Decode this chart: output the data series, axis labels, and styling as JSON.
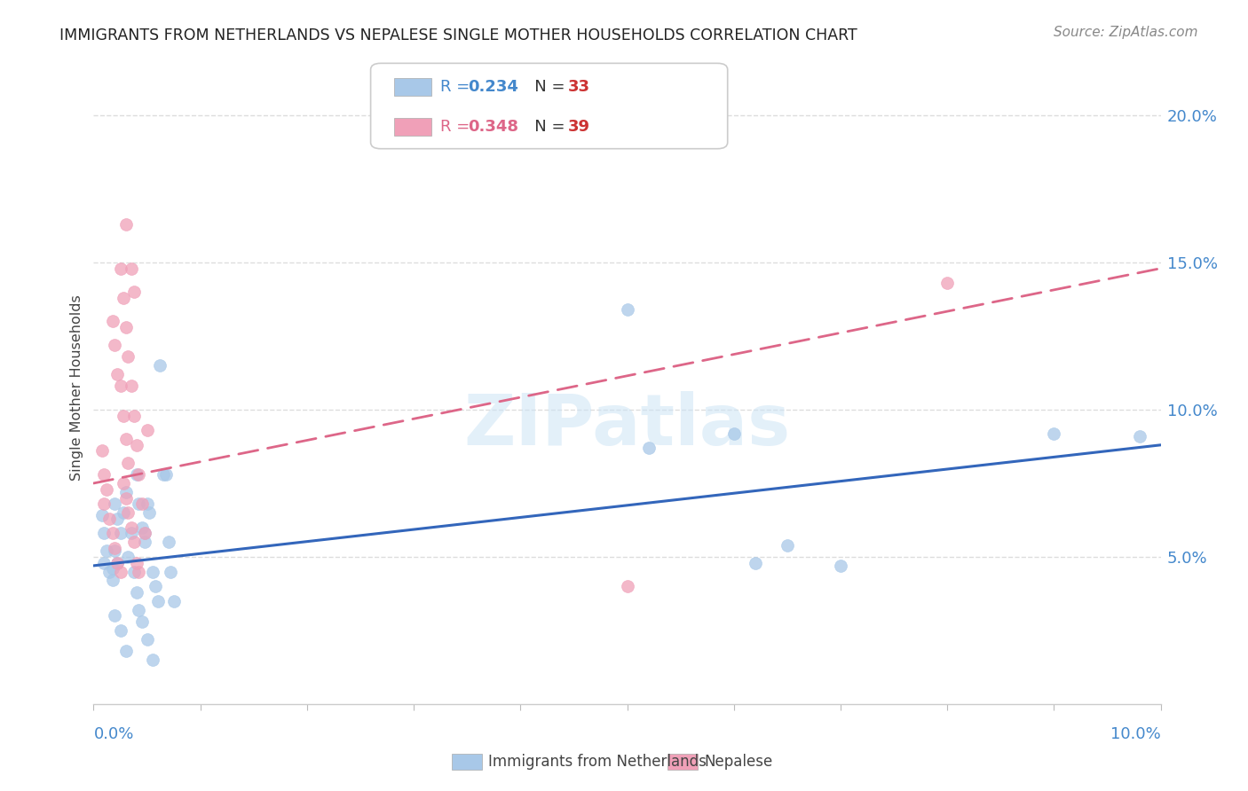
{
  "title": "IMMIGRANTS FROM NETHERLANDS VS NEPALESE SINGLE MOTHER HOUSEHOLDS CORRELATION CHART",
  "source": "Source: ZipAtlas.com",
  "ylabel": "Single Mother Households",
  "right_yticks": [
    "5.0%",
    "10.0%",
    "15.0%",
    "20.0%"
  ],
  "right_ytick_vals": [
    0.05,
    0.1,
    0.15,
    0.2
  ],
  "xmin": 0.0,
  "xmax": 0.1,
  "ymin": 0.0,
  "ymax": 0.215,
  "color_blue": "#a8c8e8",
  "color_pink": "#f0a0b8",
  "trendline_blue": "#3366bb",
  "trendline_pink": "#dd6688",
  "watermark": "ZIPatlas",
  "blue_points": [
    [
      0.0008,
      0.064
    ],
    [
      0.001,
      0.058
    ],
    [
      0.0012,
      0.052
    ],
    [
      0.001,
      0.048
    ],
    [
      0.0015,
      0.045
    ],
    [
      0.0018,
      0.042
    ],
    [
      0.002,
      0.068
    ],
    [
      0.0022,
      0.063
    ],
    [
      0.0025,
      0.058
    ],
    [
      0.002,
      0.052
    ],
    [
      0.0022,
      0.048
    ],
    [
      0.0018,
      0.046
    ],
    [
      0.003,
      0.072
    ],
    [
      0.0028,
      0.065
    ],
    [
      0.0035,
      0.058
    ],
    [
      0.0032,
      0.05
    ],
    [
      0.0038,
      0.045
    ],
    [
      0.004,
      0.078
    ],
    [
      0.0042,
      0.068
    ],
    [
      0.0045,
      0.06
    ],
    [
      0.0048,
      0.055
    ],
    [
      0.005,
      0.068
    ],
    [
      0.0052,
      0.065
    ],
    [
      0.0048,
      0.058
    ],
    [
      0.0055,
      0.045
    ],
    [
      0.0058,
      0.04
    ],
    [
      0.006,
      0.035
    ],
    [
      0.0062,
      0.115
    ],
    [
      0.0065,
      0.078
    ],
    [
      0.0068,
      0.078
    ],
    [
      0.007,
      0.055
    ],
    [
      0.0072,
      0.045
    ],
    [
      0.0075,
      0.035
    ],
    [
      0.05,
      0.134
    ],
    [
      0.052,
      0.087
    ],
    [
      0.06,
      0.092
    ],
    [
      0.062,
      0.048
    ],
    [
      0.065,
      0.054
    ],
    [
      0.07,
      0.047
    ],
    [
      0.09,
      0.092
    ],
    [
      0.098,
      0.091
    ],
    [
      0.002,
      0.03
    ],
    [
      0.0025,
      0.025
    ],
    [
      0.003,
      0.018
    ],
    [
      0.004,
      0.038
    ],
    [
      0.0042,
      0.032
    ],
    [
      0.0045,
      0.028
    ],
    [
      0.005,
      0.022
    ],
    [
      0.0055,
      0.015
    ]
  ],
  "pink_points": [
    [
      0.0008,
      0.086
    ],
    [
      0.001,
      0.078
    ],
    [
      0.0012,
      0.073
    ],
    [
      0.001,
      0.068
    ],
    [
      0.0015,
      0.063
    ],
    [
      0.0018,
      0.058
    ],
    [
      0.002,
      0.053
    ],
    [
      0.0022,
      0.048
    ],
    [
      0.0025,
      0.045
    ],
    [
      0.0018,
      0.13
    ],
    [
      0.002,
      0.122
    ],
    [
      0.0022,
      0.112
    ],
    [
      0.0025,
      0.108
    ],
    [
      0.0028,
      0.098
    ],
    [
      0.003,
      0.09
    ],
    [
      0.0032,
      0.082
    ],
    [
      0.0028,
      0.075
    ],
    [
      0.003,
      0.07
    ],
    [
      0.0032,
      0.065
    ],
    [
      0.0035,
      0.06
    ],
    [
      0.0038,
      0.055
    ],
    [
      0.004,
      0.048
    ],
    [
      0.0042,
      0.045
    ],
    [
      0.0025,
      0.148
    ],
    [
      0.0028,
      0.138
    ],
    [
      0.003,
      0.128
    ],
    [
      0.0032,
      0.118
    ],
    [
      0.0035,
      0.108
    ],
    [
      0.0038,
      0.098
    ],
    [
      0.004,
      0.088
    ],
    [
      0.0042,
      0.078
    ],
    [
      0.0045,
      0.068
    ],
    [
      0.0048,
      0.058
    ],
    [
      0.003,
      0.163
    ],
    [
      0.0035,
      0.148
    ],
    [
      0.0038,
      0.14
    ],
    [
      0.005,
      0.093
    ],
    [
      0.05,
      0.04
    ],
    [
      0.08,
      0.143
    ]
  ],
  "blue_trend_x": [
    0.0,
    0.1
  ],
  "blue_trend_y": [
    0.047,
    0.088
  ],
  "pink_trend_x": [
    0.0,
    0.1
  ],
  "pink_trend_y": [
    0.075,
    0.148
  ]
}
